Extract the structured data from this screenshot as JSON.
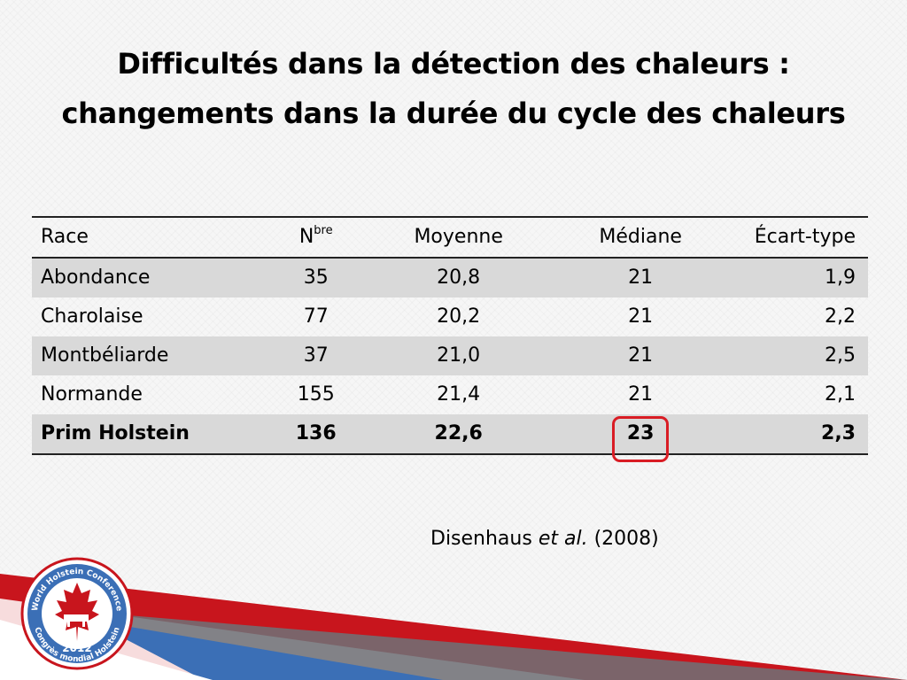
{
  "title": {
    "line1": "Difficultés dans la détection des chaleurs :",
    "line2": "changements dans la durée du cycle des chaleurs"
  },
  "table": {
    "headers": {
      "race": "Race",
      "n_base": "N",
      "n_sup": "bre",
      "moyenne": "Moyenne",
      "mediane": "Médiane",
      "ecart_type": "Écart-type"
    },
    "rows": [
      {
        "race": "Abondance",
        "n": "35",
        "moyenne": "20,8",
        "mediane": "21",
        "ecart_type": "1,9"
      },
      {
        "race": "Charolaise",
        "n": "77",
        "moyenne": "20,2",
        "mediane": "21",
        "ecart_type": "2,2"
      },
      {
        "race": "Montbéliarde",
        "n": "37",
        "moyenne": "21,0",
        "mediane": "21",
        "ecart_type": "2,5"
      },
      {
        "race": "Normande",
        "n": "155",
        "moyenne": "21,4",
        "mediane": "21",
        "ecart_type": "2,1"
      },
      {
        "race": "Prim Holstein",
        "n": "136",
        "moyenne": "22,6",
        "mediane": "23",
        "ecart_type": "2,3"
      }
    ],
    "highlighted_cell": {
      "row": "Prim Holstein",
      "column": "mediane",
      "ring_color": "#d91c24"
    }
  },
  "source": {
    "author": "Disenhaus",
    "etal": "et al.",
    "year": "(2008)"
  },
  "logo": {
    "top_text": "World Holstein Conference",
    "bottom_text": "Congrès mondial Holstein",
    "year": "2012",
    "icon": "maple-leaf-cow-icon"
  },
  "colors": {
    "accent_red": "#c8151d",
    "accent_blue": "#3b6fb6",
    "row_shade": "#d9d9d9"
  }
}
